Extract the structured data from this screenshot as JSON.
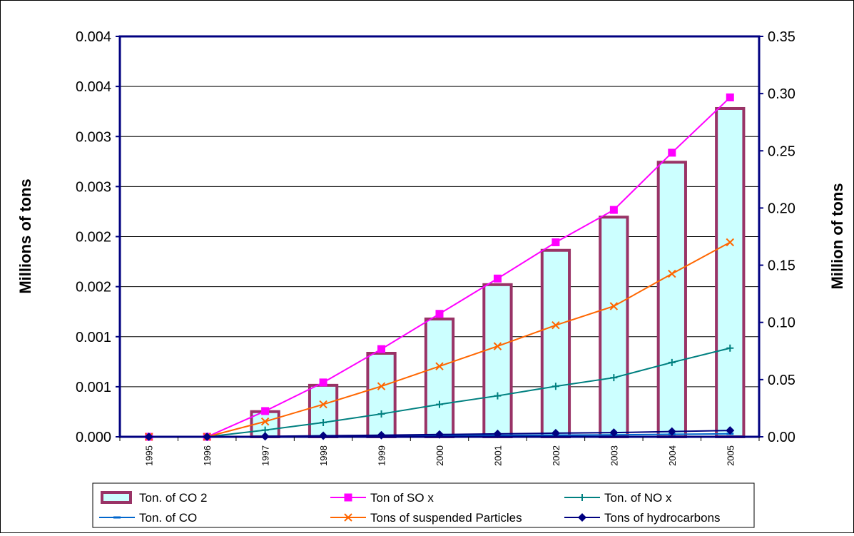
{
  "chart_data": {
    "type": "bar+line",
    "categories": [
      "1995",
      "1996",
      "1997",
      "1998",
      "1999",
      "2000",
      "2001",
      "2002",
      "2003",
      "2004",
      "2005"
    ],
    "y_left": {
      "label": "Millions of tons",
      "range": [
        0,
        0.0042
      ],
      "tick_labels": [
        "0.000",
        "0.001",
        "0.001",
        "0.002",
        "0.002",
        "0.003",
        "0.003",
        "0.004",
        "0.004"
      ]
    },
    "y_right": {
      "label": "Million of tons",
      "range": [
        0,
        0.35
      ],
      "tick_labels": [
        "0.00",
        "0.05",
        "0.10",
        "0.15",
        "0.20",
        "0.25",
        "0.30",
        "0.35"
      ]
    },
    "grid": true,
    "legend_position": "bottom",
    "series": [
      {
        "name": "Ton. of CO 2",
        "type": "bar",
        "axis": "right",
        "fill": "#ccffff",
        "stroke": "#993366",
        "values": [
          0,
          0,
          0.022,
          0.045,
          0.073,
          0.103,
          0.133,
          0.163,
          0.192,
          0.24,
          0.287
        ]
      },
      {
        "name": "Ton of SO x",
        "type": "line",
        "axis": "left",
        "color": "#ff00ff",
        "marker": "square",
        "values": [
          0,
          0,
          0.00027,
          0.00057,
          0.00092,
          0.00129,
          0.00166,
          0.00204,
          0.00238,
          0.00298,
          0.00356
        ]
      },
      {
        "name": "Ton. of NO x",
        "type": "line",
        "axis": "left",
        "color": "#008080",
        "marker": "plus",
        "values": [
          0,
          0,
          7e-05,
          0.00015,
          0.00024,
          0.00034,
          0.00043,
          0.00053,
          0.00062,
          0.00078,
          0.00093
        ]
      },
      {
        "name": "Ton. of CO",
        "type": "line",
        "axis": "left",
        "color": "#0066cc",
        "marker": "dash",
        "values": [
          0,
          0,
          0,
          5e-06,
          8e-06,
          1.2e-05,
          1.5e-05,
          1.8e-05,
          2.1e-05,
          2.6e-05,
          3.1e-05
        ]
      },
      {
        "name": "Tons of suspended Particles",
        "type": "line",
        "axis": "left",
        "color": "#ff6600",
        "marker": "x",
        "values": [
          0,
          0,
          0.00016,
          0.00034,
          0.00053,
          0.00074,
          0.00095,
          0.00117,
          0.00137,
          0.00171,
          0.00204
        ]
      },
      {
        "name": "Tons of hydrocarbons",
        "type": "line",
        "axis": "left",
        "color": "#000080",
        "marker": "diamond",
        "values": [
          0,
          0,
          5e-06,
          1.1e-05,
          1.7e-05,
          2.4e-05,
          3.1e-05,
          3.8e-05,
          4.4e-05,
          5.5e-05,
          6.6e-05
        ]
      }
    ]
  }
}
